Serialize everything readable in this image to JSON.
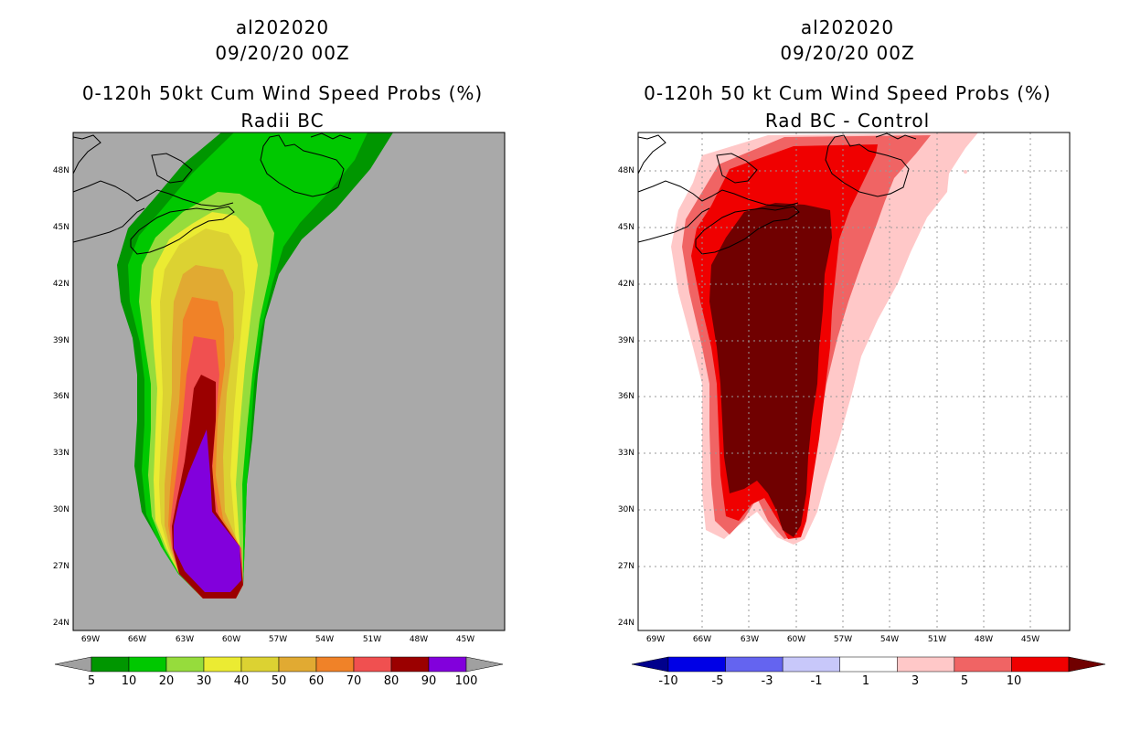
{
  "left": {
    "storm_id": "al202020",
    "date": "09/20/20 00Z",
    "title": "0-120h 50kt Cum Wind Speed Probs (%)",
    "subtitle": "Radii BC",
    "lat_labels": [
      "48N",
      "45N",
      "42N",
      "39N",
      "36N",
      "33N",
      "30N",
      "27N",
      "24N"
    ],
    "lon_labels": [
      "69W",
      "66W",
      "63W",
      "60W",
      "57W",
      "54W",
      "51W",
      "48W",
      "45W"
    ],
    "colorbar": {
      "colors": [
        "#009600",
        "#00c800",
        "#96dc3c",
        "#ebeb32",
        "#dcd232",
        "#e1aa32",
        "#f08228",
        "#f05050",
        "#9b0000",
        "#8200dc"
      ],
      "end_colors": [
        "#a0a0a0",
        "#a0a0a0"
      ],
      "labels": [
        "5",
        "10",
        "20",
        "30",
        "40",
        "50",
        "60",
        "70",
        "80",
        "90",
        "100"
      ]
    },
    "ocean_color": "#a9a9a9"
  },
  "right": {
    "storm_id": "al202020",
    "date": "09/20/20 00Z",
    "title": "0-120h 50 kt Cum Wind Speed Probs (%)",
    "subtitle": "Rad BC - Control",
    "lat_labels": [
      "48N",
      "45N",
      "42N",
      "39N",
      "36N",
      "33N",
      "30N",
      "27N",
      "24N"
    ],
    "lon_labels": [
      "69W",
      "66W",
      "63W",
      "60W",
      "57W",
      "54W",
      "51W",
      "48W",
      "45W"
    ],
    "colorbar": {
      "colors": [
        "#0000e6",
        "#6464f0",
        "#c8c8fa",
        "#ffffff",
        "#ffc8c8",
        "#f06464",
        "#f00000"
      ],
      "end_colors": [
        "#00008c",
        "#700000"
      ],
      "labels": [
        "-10",
        "-5",
        "-3",
        "-1",
        "1",
        "3",
        "5",
        "10"
      ]
    }
  }
}
